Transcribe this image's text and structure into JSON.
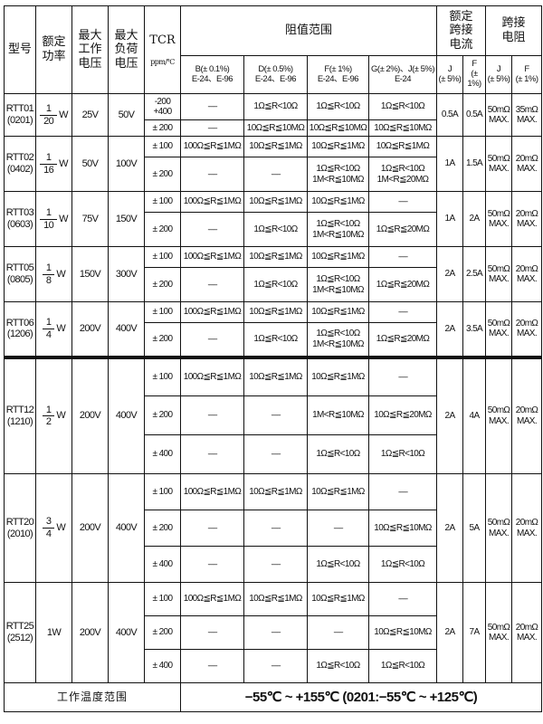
{
  "header": {
    "model": "型号",
    "power": "额定\n功率",
    "max_work_voltage": "最大\n工作\n电压",
    "max_load_voltage": "最大\n负荷\n电压",
    "tcr": "TCR",
    "tcr_unit": "ppm/℃",
    "resistance_range": "阻值范围",
    "rated_jumper_current": "额定\n跨接\n电流",
    "jumper_resistance": "跨接\n电阻",
    "tol_b": "B(± 0.1%)\nE-24、E-96",
    "tol_d": "D(± 0.5%)\nE-24、E-96",
    "tol_f": "F(± 1%)\nE-24、E-96",
    "tol_gj": "G(± 2%)、J(± 5%)\nE-24",
    "cur_j": "J\n(± 5%)",
    "cur_f": "F\n(± 1%)",
    "res_j": "J\n(± 5%)",
    "res_f": "F\n(± 1%)"
  },
  "models": [
    {
      "model": "RTT01\n(0201)",
      "power_num": "1",
      "power_den": "20",
      "power_unit": "W",
      "v_work": "25V",
      "v_load": "50V",
      "rows": [
        {
          "tcr": "-200\n+400",
          "b": "------",
          "d": "1Ω≦R<10Ω",
          "f": "1Ω≦R<10Ω",
          "g": "1Ω≦R<10Ω"
        },
        {
          "tcr": "± 200",
          "b": "------",
          "d": "10Ω≦R≦10MΩ",
          "f": "10Ω≦R≦10MΩ",
          "g": "10Ω≦R≦10MΩ"
        }
      ],
      "cur_j": "0.5A",
      "cur_f": "0.5A",
      "res_j": "50mΩ\nMAX.",
      "res_f": "35mΩ\nMAX."
    },
    {
      "model": "RTT02\n(0402)",
      "power_num": "1",
      "power_den": "16",
      "power_unit": "W",
      "v_work": "50V",
      "v_load": "100V",
      "rows": [
        {
          "tcr": "± 100",
          "b": "100Ω≦R≦1MΩ",
          "d": "10Ω≦R≦1MΩ",
          "f": "10Ω≦R≦1MΩ",
          "g": "10Ω≦R≦1MΩ"
        },
        {
          "tcr": "± 200",
          "b": "------",
          "d": "------",
          "f": "1Ω≦R<10Ω\n1M<R≦10MΩ",
          "g": "1Ω≦R<10Ω\n1M<R≦20MΩ"
        }
      ],
      "cur_j": "1A",
      "cur_f": "1.5A",
      "res_j": "50mΩ\nMAX.",
      "res_f": "20mΩ\nMAX."
    },
    {
      "model": "RTT03\n(0603)",
      "power_num": "1",
      "power_den": "10",
      "power_unit": "W",
      "v_work": "75V",
      "v_load": "150V",
      "rows": [
        {
          "tcr": "± 100",
          "b": "100Ω≦R≦1MΩ",
          "d": "10Ω≦R≦1MΩ",
          "f": "10Ω≦R≦1MΩ",
          "g": "------"
        },
        {
          "tcr": "± 200",
          "b": "------",
          "d": "1Ω≦R<10Ω",
          "f": "1Ω≦R<10Ω\n1M<R≦10MΩ",
          "g": "1Ω≦R≦20MΩ"
        }
      ],
      "cur_j": "1A",
      "cur_f": "2A",
      "res_j": "50mΩ\nMAX.",
      "res_f": "20mΩ\nMAX."
    },
    {
      "model": "RTT05\n(0805)",
      "power_num": "1",
      "power_den": "8",
      "power_unit": "W",
      "v_work": "150V",
      "v_load": "300V",
      "rows": [
        {
          "tcr": "± 100",
          "b": "100Ω≦R≦1MΩ",
          "d": "10Ω≦R≦1MΩ",
          "f": "10Ω≦R≦1MΩ",
          "g": "------"
        },
        {
          "tcr": "± 200",
          "b": "------",
          "d": "1Ω≦R<10Ω",
          "f": "1Ω≦R<10Ω\n1M<R≦10MΩ",
          "g": "1Ω≦R≦20MΩ"
        }
      ],
      "cur_j": "2A",
      "cur_f": "2.5A",
      "res_j": "50mΩ\nMAX.",
      "res_f": "20mΩ\nMAX."
    },
    {
      "model": "RTT06\n(1206)",
      "power_num": "1",
      "power_den": "4",
      "power_unit": "W",
      "v_work": "200V",
      "v_load": "400V",
      "rows": [
        {
          "tcr": "± 100",
          "b": "100Ω≦R≦1MΩ",
          "d": "10Ω≦R≦1MΩ",
          "f": "10Ω≦R≦1MΩ",
          "g": "------"
        },
        {
          "tcr": "± 200",
          "b": "------",
          "d": "1Ω≦R<10Ω",
          "f": "1Ω≦R<10Ω\n1M<R≦10MΩ",
          "g": "1Ω≦R≦20MΩ"
        }
      ],
      "cur_j": "2A",
      "cur_f": "3.5A",
      "res_j": "50mΩ\nMAX.",
      "res_f": "20mΩ\nMAX."
    },
    {
      "model": "RTT12\n(1210)",
      "power_num": "1",
      "power_den": "2",
      "power_unit": "W",
      "v_work": "200V",
      "v_load": "400V",
      "rows": [
        {
          "tcr": "± 100",
          "b": "100Ω≦R≦1MΩ",
          "d": "10Ω≦R≦1MΩ",
          "f": "10Ω≦R≦1MΩ",
          "g": "------"
        },
        {
          "tcr": "± 200",
          "b": "------",
          "d": "------",
          "f": "1M<R≦10MΩ",
          "g": "10Ω≦R≦20MΩ"
        },
        {
          "tcr": "± 400",
          "b": "------",
          "d": "------",
          "f": "1Ω≦R<10Ω",
          "g": "1Ω≦R<10Ω"
        }
      ],
      "cur_j": "2A",
      "cur_f": "4A",
      "res_j": "50mΩ\nMAX.",
      "res_f": "20mΩ\nMAX."
    },
    {
      "model": "RTT20\n(2010)",
      "power_num": "3",
      "power_den": "4",
      "power_unit": "W",
      "v_work": "200V",
      "v_load": "400V",
      "rows": [
        {
          "tcr": "± 100",
          "b": "100Ω≦R≦1MΩ",
          "d": "10Ω≦R≦1MΩ",
          "f": "10Ω≦R≦1MΩ",
          "g": "------"
        },
        {
          "tcr": "± 200",
          "b": "------",
          "d": "------",
          "f": "------",
          "g": "10Ω≦R≦10MΩ"
        },
        {
          "tcr": "± 400",
          "b": "------",
          "d": "------",
          "f": "1Ω≦R<10Ω",
          "g": "1Ω≦R<10Ω"
        }
      ],
      "cur_j": "2A",
      "cur_f": "5A",
      "res_j": "50mΩ\nMAX.",
      "res_f": "20mΩ\nMAX."
    },
    {
      "model": "RTT25\n(2512)",
      "power_text": "1W",
      "v_work": "200V",
      "v_load": "400V",
      "rows": [
        {
          "tcr": "± 100",
          "b": "100Ω≦R≦1MΩ",
          "d": "10Ω≦R≦1MΩ",
          "f": "10Ω≦R≦1MΩ",
          "g": "------"
        },
        {
          "tcr": "± 200",
          "b": "------",
          "d": "------",
          "f": "------",
          "g": "10Ω≦R≦10MΩ"
        },
        {
          "tcr": "± 400",
          "b": "------",
          "d": "------",
          "f": "1Ω≦R<10Ω",
          "g": "1Ω≦R<10Ω"
        }
      ],
      "cur_j": "2A",
      "cur_f": "7A",
      "res_j": "50mΩ\nMAX.",
      "res_f": "20mΩ\nMAX."
    }
  ],
  "footer": {
    "label": "工作温度范围",
    "value": "−55℃ ~ +155℃   (0201:−55℃ ~ +125℃)"
  }
}
